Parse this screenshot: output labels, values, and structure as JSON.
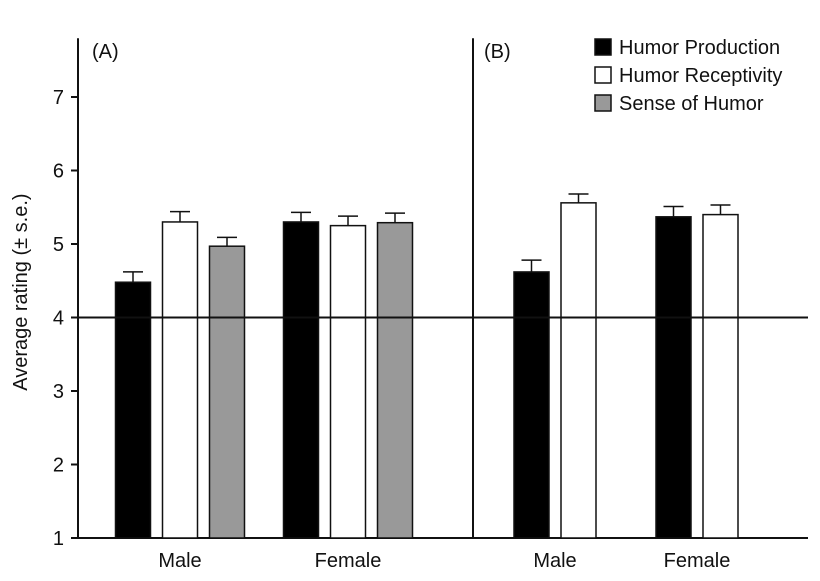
{
  "chart_data": {
    "type": "bar",
    "ylabel": "Average rating (± s.e.)",
    "ylim": [
      1,
      7.8
    ],
    "yticks": [
      1,
      2,
      3,
      4,
      5,
      6,
      7
    ],
    "reference_line": 4,
    "legend": {
      "placement": "top-right",
      "entries": [
        {
          "name": "Humor Production",
          "color": "#000000"
        },
        {
          "name": "Humor Receptivity",
          "color": "#ffffff"
        },
        {
          "name": "Sense of Humor",
          "color": "#999999"
        }
      ]
    },
    "panels": [
      {
        "label": "(A)",
        "categories": [
          "Male",
          "Female"
        ],
        "series": [
          {
            "name": "Humor Production",
            "color": "#000000",
            "values": [
              4.48,
              5.3
            ],
            "errors": [
              0.14,
              0.13
            ]
          },
          {
            "name": "Humor Receptivity",
            "color": "#ffffff",
            "values": [
              5.3,
              5.25
            ],
            "errors": [
              0.14,
              0.13
            ]
          },
          {
            "name": "Sense of Humor",
            "color": "#999999",
            "values": [
              4.97,
              5.29
            ],
            "errors": [
              0.12,
              0.13
            ]
          }
        ]
      },
      {
        "label": "(B)",
        "categories": [
          "Male",
          "Female"
        ],
        "series": [
          {
            "name": "Humor Production",
            "color": "#000000",
            "values": [
              4.62,
              5.37
            ],
            "errors": [
              0.16,
              0.14
            ]
          },
          {
            "name": "Humor Receptivity",
            "color": "#ffffff",
            "values": [
              5.56,
              5.4
            ],
            "errors": [
              0.12,
              0.13
            ]
          }
        ]
      }
    ]
  }
}
